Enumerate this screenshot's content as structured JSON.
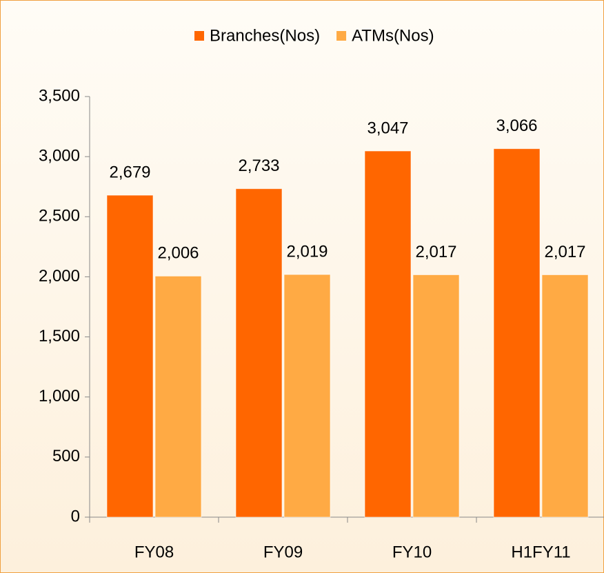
{
  "chart_data": {
    "type": "bar",
    "categories": [
      "FY08",
      "FY09",
      "FY10",
      "H1FY11"
    ],
    "series": [
      {
        "name": "Branches(Nos)",
        "color": "#ff6600",
        "values": [
          2679,
          2733,
          3047,
          3066
        ],
        "value_labels": [
          "2,679",
          "2,733",
          "3,047",
          "3,066"
        ]
      },
      {
        "name": "ATMs(Nos)",
        "color": "#ffaa44",
        "values": [
          2006,
          2019,
          2017,
          2017
        ],
        "value_labels": [
          "2,006",
          "2,019",
          "2,017",
          "2,017"
        ]
      }
    ],
    "ylim": [
      0,
      3500
    ],
    "yticks": [
      0,
      {
        "value": 500,
        "label": "500"
      },
      {
        "value": 1000,
        "label": "1,000"
      },
      {
        "value": 1500,
        "label": "1,500"
      },
      {
        "value": 2000,
        "label": "2,000"
      },
      {
        "value": 2500,
        "label": "2,500"
      },
      {
        "value": 3000,
        "label": "3,000"
      },
      {
        "value": 3500,
        "label": "3,500"
      }
    ],
    "legend": "top"
  }
}
